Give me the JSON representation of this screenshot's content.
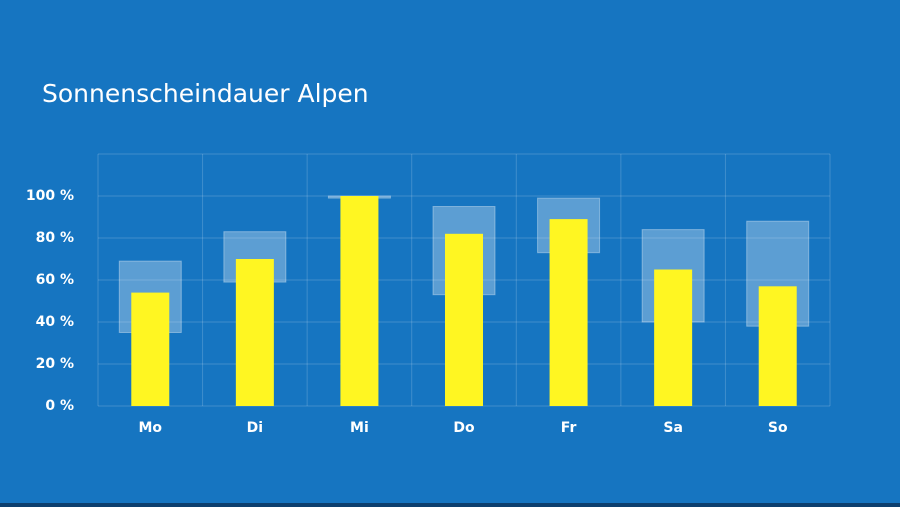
{
  "chart_data": {
    "type": "bar",
    "title": "Sonnenscheindauer Alpen",
    "categories": [
      "Mo",
      "Di",
      "Mi",
      "Do",
      "Fr",
      "Sa",
      "So"
    ],
    "values": [
      54,
      70,
      100,
      82,
      89,
      65,
      57
    ],
    "ranges": [
      [
        35,
        69
      ],
      [
        59,
        83
      ],
      [
        99,
        100
      ],
      [
        53,
        95
      ],
      [
        73,
        99
      ],
      [
        40,
        84
      ],
      [
        38,
        88
      ]
    ],
    "color": "#fff622",
    "range_color": "#ffffff",
    "ylim": [
      0,
      120
    ],
    "yticks": [
      {
        "value": 0,
        "label": "0 %"
      },
      {
        "value": 20,
        "label": "20 %"
      },
      {
        "value": 40,
        "label": "40 %"
      },
      {
        "value": 60,
        "label": "60 %"
      },
      {
        "value": 80,
        "label": "80 %"
      },
      {
        "value": 100,
        "label": "100 %"
      }
    ],
    "grid": true
  }
}
